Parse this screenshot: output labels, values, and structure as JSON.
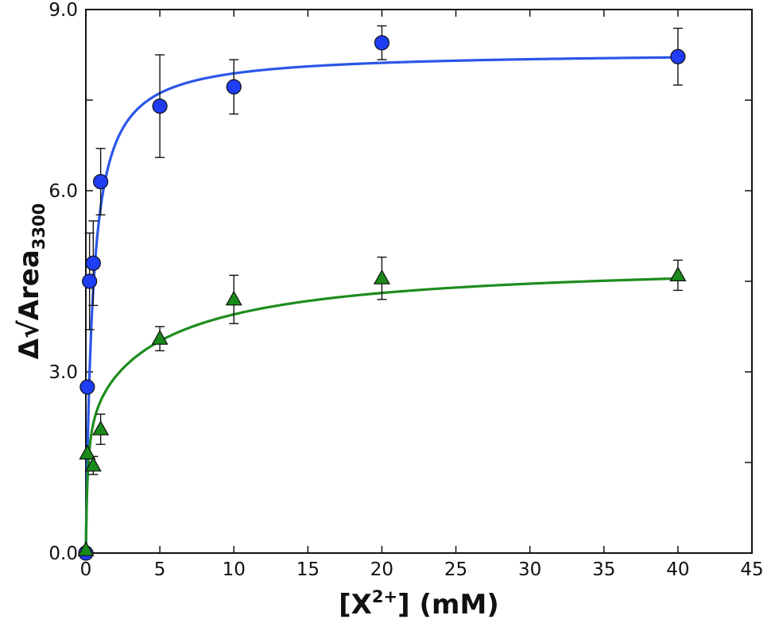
{
  "chart_data": {
    "type": "scatter",
    "title": "",
    "xlabel": {
      "pre": "[X",
      "sup": "2+",
      "post": "] (mM)"
    },
    "ylabel": {
      "pre": "Δ√Area",
      "sub": "3300"
    },
    "xlim": [
      0,
      45
    ],
    "ylim": [
      0,
      9
    ],
    "xticks": [
      0,
      5,
      10,
      15,
      20,
      25,
      30,
      35,
      40,
      45
    ],
    "yticks": [
      0,
      3,
      6,
      9
    ],
    "xtick_labels": [
      "0",
      "5",
      "10",
      "15",
      "20",
      "25",
      "30",
      "35",
      "40",
      "45"
    ],
    "ytick_labels": [
      "0.0",
      "3.0",
      "6.0",
      "9.0"
    ],
    "grid": false,
    "series": [
      {
        "marker": "circle",
        "color": "#1f3df2",
        "line_color": "#2a57e8",
        "points": [
          {
            "x": 0,
            "y": 0.0,
            "err": 0.0
          },
          {
            "x": 0.1,
            "y": 2.75,
            "err": 0.0
          },
          {
            "x": 0.25,
            "y": 4.5,
            "err": 0.8
          },
          {
            "x": 0.5,
            "y": 4.8,
            "err": 0.7
          },
          {
            "x": 1,
            "y": 6.15,
            "err": 0.55
          },
          {
            "x": 5,
            "y": 7.4,
            "err": 0.85
          },
          {
            "x": 10,
            "y": 7.72,
            "err": 0.45
          },
          {
            "x": 20,
            "y": 8.45,
            "err": 0.28
          },
          {
            "x": 40,
            "y": 8.22,
            "err": 0.47
          }
        ],
        "fit": {
          "model": "hyperbolic",
          "bmax": 8.3,
          "kd": 0.45
        }
      },
      {
        "marker": "triangle",
        "color": "#1a8a1a",
        "line_color": "#1e8c1e",
        "points": [
          {
            "x": 0,
            "y": 0.05,
            "err": 0.0
          },
          {
            "x": 0.1,
            "y": 1.65,
            "err": 0.0
          },
          {
            "x": 0.5,
            "y": 1.45,
            "err": 0.15
          },
          {
            "x": 1,
            "y": 2.05,
            "err": 0.25
          },
          {
            "x": 5,
            "y": 3.55,
            "err": 0.2
          },
          {
            "x": 10,
            "y": 4.2,
            "err": 0.4
          },
          {
            "x": 20,
            "y": 4.55,
            "err": 0.35
          },
          {
            "x": 40,
            "y": 4.6,
            "err": 0.25
          }
        ],
        "fit": {
          "model": "two-site",
          "b1": 2.4,
          "k1": 0.12,
          "b2": 2.45,
          "k2": 5.5
        }
      }
    ]
  }
}
